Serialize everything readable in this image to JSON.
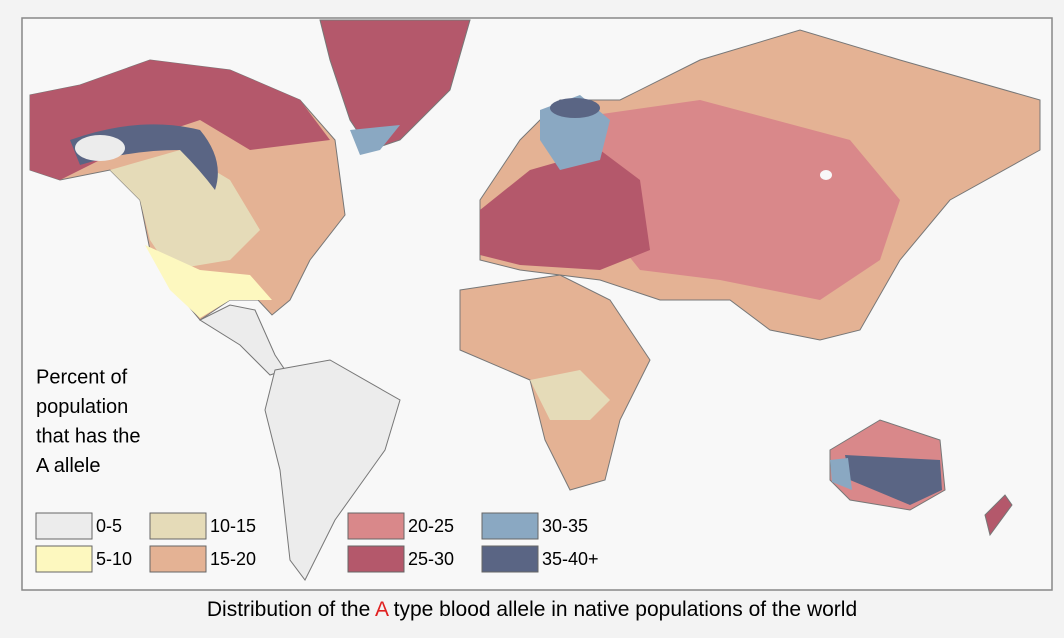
{
  "legend": {
    "title_lines": [
      "Percent of",
      "population",
      "that has the",
      "A allele"
    ],
    "items": [
      {
        "label": "0-5",
        "color": "#ececec"
      },
      {
        "label": "5-10",
        "color": "#fdf8bf"
      },
      {
        "label": "10-15",
        "color": "#e5dbb8"
      },
      {
        "label": "15-20",
        "color": "#e4b294"
      },
      {
        "label": "20-25",
        "color": "#d9888a"
      },
      {
        "label": "25-30",
        "color": "#b4586b"
      },
      {
        "label": "30-35",
        "color": "#8aa8c2"
      },
      {
        "label": "35-40+",
        "color": "#5a6584"
      }
    ]
  },
  "caption": {
    "before": "Distribution of the ",
    "highlight": "A",
    "after": " type blood allele in native populations of the world"
  }
}
